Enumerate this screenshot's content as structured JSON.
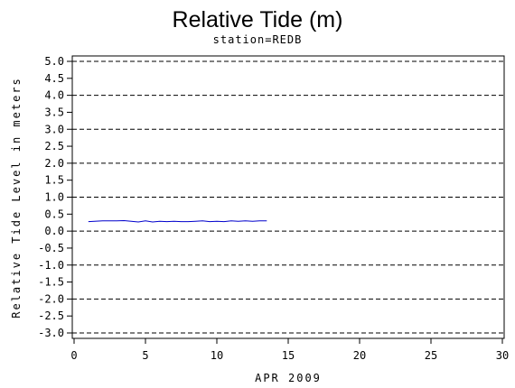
{
  "chart_data": {
    "type": "line",
    "title": "Relative Tide (m)",
    "subtitle": "station=REDB",
    "xlabel": "APR 2009",
    "ylabel": "Relative Tide Level in meters",
    "xlim": [
      0,
      30
    ],
    "ylim": [
      -3.0,
      5.0
    ],
    "x_ticks": [
      0,
      5,
      10,
      15,
      20,
      25,
      30
    ],
    "y_ticks": [
      5.0,
      4.5,
      4.0,
      3.5,
      3.0,
      2.5,
      2.0,
      1.5,
      1.0,
      0.5,
      0.0,
      -0.5,
      -1.0,
      -1.5,
      -2.0,
      -2.5,
      -3.0
    ],
    "y_tick_labels": [
      "5.0",
      "4.5",
      "4.0",
      "3.5",
      "3.0",
      "2.5",
      "2.0",
      "1.5",
      "1.0",
      "0.5",
      "0.0",
      "-0.5",
      "-1.0",
      "-1.5",
      "-2.0",
      "-2.5",
      "-3.0"
    ],
    "gridlines_y": [
      5.0,
      4.0,
      3.0,
      2.0,
      1.0,
      0.0,
      -1.0,
      -2.0,
      -3.0
    ],
    "grid": "horizontal dashed at whole meters",
    "series": [
      {
        "color": "#0000cc",
        "x": [
          1.0,
          2.0,
          3.0,
          3.5,
          4.0,
          4.5,
          5.0,
          5.5,
          6.0,
          6.5,
          7.0,
          7.5,
          8.0,
          8.5,
          9.0,
          9.5,
          10.0,
          10.5,
          11.0,
          11.5,
          12.0,
          12.5,
          13.0,
          13.5
        ],
        "y": [
          0.28,
          0.3,
          0.3,
          0.31,
          0.29,
          0.27,
          0.3,
          0.27,
          0.29,
          0.28,
          0.29,
          0.28,
          0.28,
          0.29,
          0.3,
          0.28,
          0.29,
          0.28,
          0.3,
          0.29,
          0.3,
          0.29,
          0.3,
          0.3
        ]
      }
    ]
  }
}
